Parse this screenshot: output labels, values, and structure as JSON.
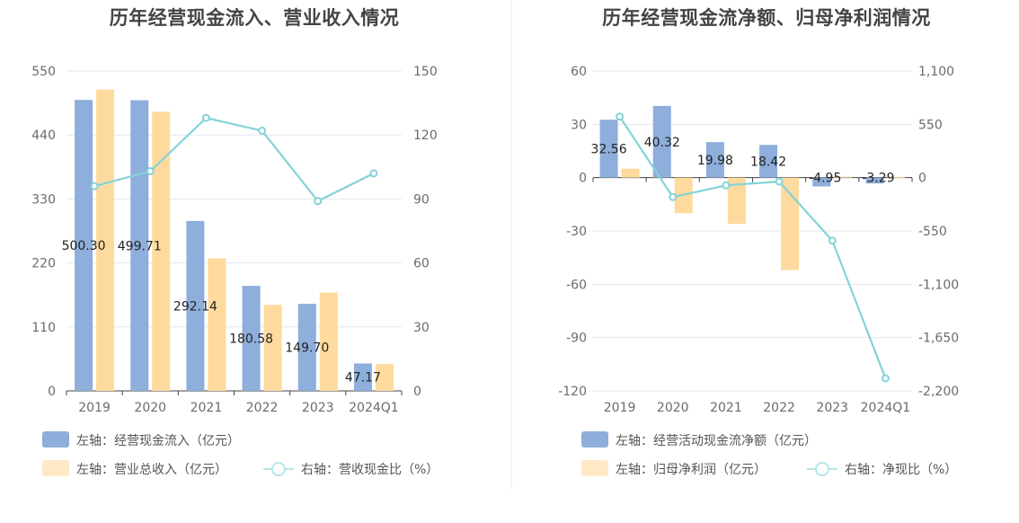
{
  "chart_data": [
    {
      "type": "bar",
      "title": "历年经营现金流入、营业收入情况",
      "categories": [
        "2019",
        "2020",
        "2021",
        "2022",
        "2023",
        "2024Q1"
      ],
      "left_axis": {
        "ticks": [
          "0",
          "110",
          "220",
          "330",
          "440",
          "550"
        ],
        "ylim": [
          0,
          550
        ]
      },
      "right_axis": {
        "ticks": [
          "0",
          "30",
          "60",
          "90",
          "120",
          "150"
        ],
        "ylim": [
          0,
          150
        ]
      },
      "grid": true,
      "legend_position": "bottom",
      "series": [
        {
          "name": "左轴：经营现金流入（亿元）",
          "type": "bar",
          "axis": "left",
          "color": "#8eaedb",
          "values": [
            500.3,
            499.71,
            292.14,
            180.58,
            149.7,
            47.17
          ],
          "labels": [
            "500.30",
            "499.71",
            "292.14",
            "180.58",
            "149.70",
            "47.17"
          ]
        },
        {
          "name": "左轴：营业总收入（亿元）",
          "type": "bar",
          "axis": "left",
          "color": "#ffda9e",
          "values": [
            518,
            480,
            228,
            148,
            169,
            46
          ]
        },
        {
          "name": "右轴：营收现金比（%）",
          "type": "line",
          "axis": "right",
          "color": "#83d3d8",
          "values": [
            96,
            103,
            128,
            122,
            89,
            102
          ]
        }
      ]
    },
    {
      "type": "bar",
      "title": "历年经营现金流净额、归母净利润情况",
      "categories": [
        "2019",
        "2020",
        "2021",
        "2022",
        "2023",
        "2024Q1"
      ],
      "left_axis": {
        "ticks": [
          "-120",
          "-90",
          "-60",
          "-30",
          "0",
          "30",
          "60"
        ],
        "ylim": [
          -120,
          60
        ]
      },
      "right_axis": {
        "ticks": [
          "-2,200",
          "-1,650",
          "-1,100",
          "-550",
          "0",
          "550",
          "1,100"
        ],
        "ylim": [
          -2200,
          1100
        ]
      },
      "grid": true,
      "legend_position": "bottom",
      "series": [
        {
          "name": "左轴：经营活动现金流净额（亿元）",
          "type": "bar",
          "axis": "left",
          "color": "#8eaedb",
          "values": [
            32.56,
            40.32,
            19.98,
            18.42,
            -4.95,
            -3.29
          ],
          "labels": [
            "32.56",
            "40.32",
            "19.98",
            "18.42",
            "-4.95",
            "-3.29"
          ]
        },
        {
          "name": "左轴：归母净利润（亿元）",
          "type": "bar",
          "axis": "left",
          "color": "#ffda9e",
          "values": [
            5,
            -20,
            -26,
            -52,
            0.5,
            0.4
          ]
        },
        {
          "name": "右轴：净现比（%）",
          "type": "line",
          "axis": "right",
          "color": "#83d3d8",
          "values": [
            630,
            -200,
            -80,
            -40,
            -650,
            -2070
          ]
        }
      ]
    }
  ]
}
